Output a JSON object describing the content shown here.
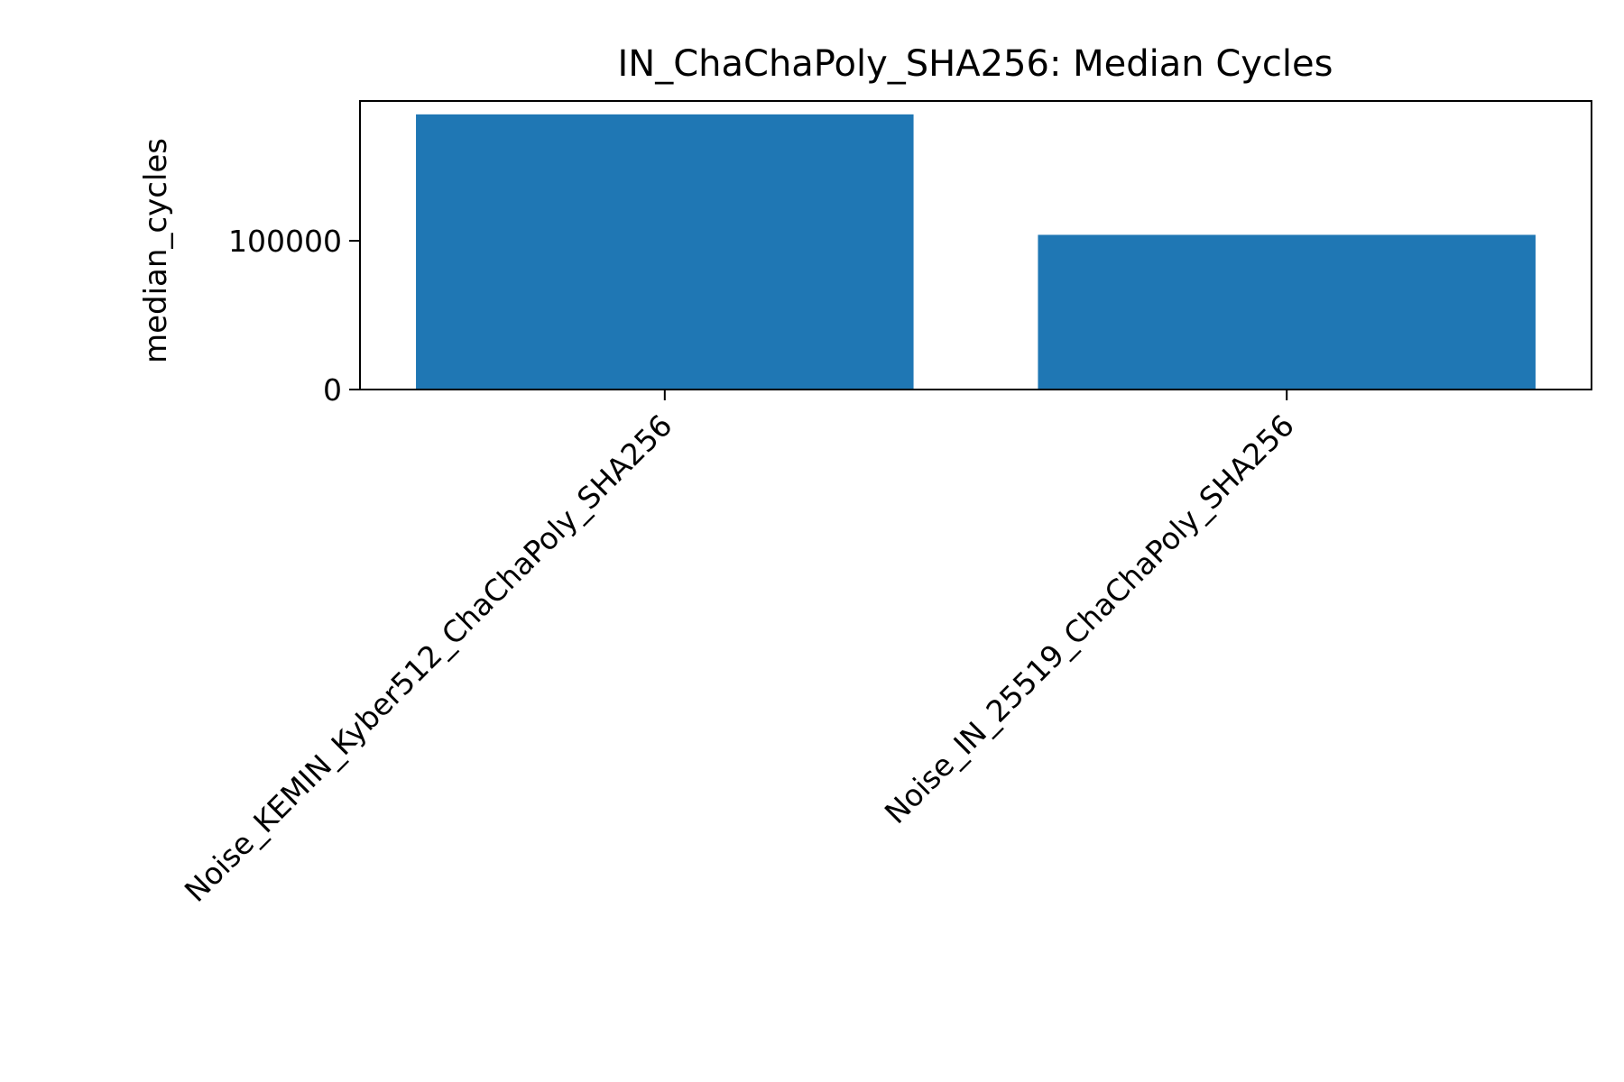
{
  "chart_data": {
    "type": "bar",
    "title": "IN_ChaChaPoly_SHA256: Median Cycles",
    "xlabel": "",
    "ylabel": "median_cycles",
    "categories": [
      "Noise_KEMIN_Kyber512_ChaChaPoly_SHA256",
      "Noise_IN_25519_ChaChaPoly_SHA256"
    ],
    "values": [
      185000,
      104000
    ],
    "ylim": [
      0,
      194000
    ],
    "yticks": [
      0,
      100000
    ],
    "ytick_labels": [
      "0",
      "100000"
    ],
    "bar_color": "#1f77b4",
    "grid": false
  }
}
